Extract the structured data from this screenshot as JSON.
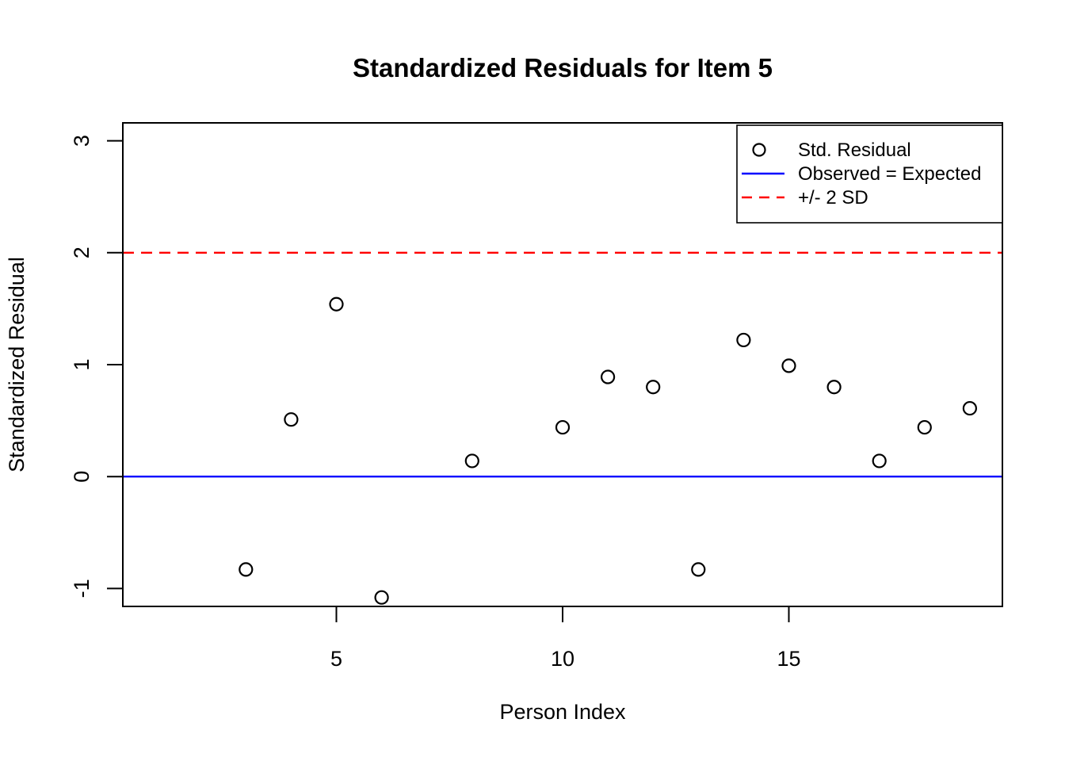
{
  "chart_data": {
    "type": "scatter",
    "title": "Standardized Residuals for Item 5",
    "xlabel": "Person Index",
    "ylabel": "Standardized Residual",
    "xlim": [
      0.28,
      19.72
    ],
    "ylim": [
      -1.16,
      3.16
    ],
    "x_ticks": [
      5,
      10,
      15
    ],
    "y_ticks": [
      -1,
      0,
      1,
      2,
      3
    ],
    "grid": false,
    "background": "#ffffff",
    "point_style": {
      "shape": "open-circle",
      "color": "#000000"
    },
    "points": [
      {
        "x": 3,
        "y": -0.83
      },
      {
        "x": 4,
        "y": 0.51
      },
      {
        "x": 5,
        "y": 1.54
      },
      {
        "x": 6,
        "y": -1.08
      },
      {
        "x": 8,
        "y": 0.14
      },
      {
        "x": 10,
        "y": 0.44
      },
      {
        "x": 11,
        "y": 0.89
      },
      {
        "x": 12,
        "y": 0.8
      },
      {
        "x": 13,
        "y": -0.83
      },
      {
        "x": 14,
        "y": 1.22
      },
      {
        "x": 15,
        "y": 0.99
      },
      {
        "x": 16,
        "y": 0.8
      },
      {
        "x": 17,
        "y": 0.14
      },
      {
        "x": 18,
        "y": 0.44
      },
      {
        "x": 19,
        "y": 0.61
      }
    ],
    "reference_lines": [
      {
        "name": "Observed = Expected",
        "y": 0,
        "color": "#0000ff",
        "style": "solid"
      },
      {
        "name": "+/- 2 SD",
        "y": 2,
        "color": "#ff0000",
        "style": "dashed"
      }
    ],
    "legend": {
      "position": "top-right",
      "entries": [
        {
          "label": "Std. Residual",
          "marker": "open-circle",
          "color": "#000000"
        },
        {
          "label": "Observed = Expected",
          "marker": "solid-line",
          "color": "#0000ff"
        },
        {
          "label": "+/- 2 SD",
          "marker": "dashed-line",
          "color": "#ff0000"
        }
      ]
    }
  }
}
